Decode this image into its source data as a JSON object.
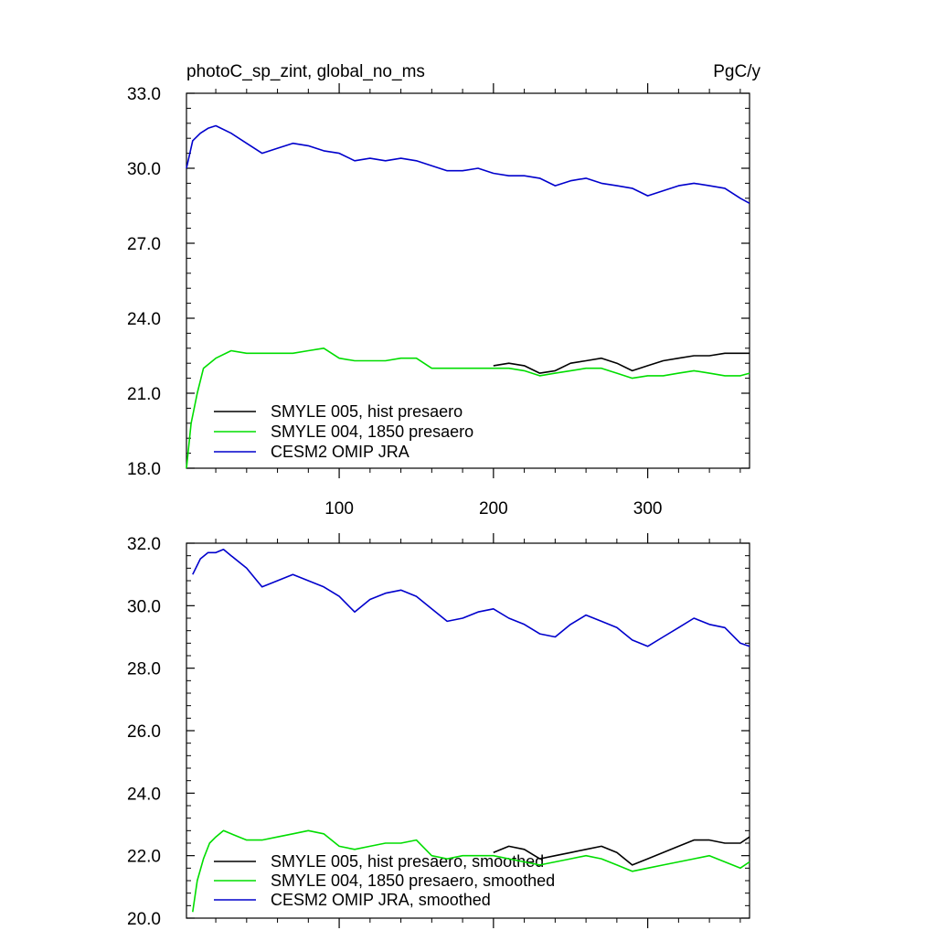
{
  "colors": {
    "hist": "#000000",
    "p1850": "#00dd00",
    "omip": "#0000cc"
  },
  "chart_data": [
    {
      "type": "line",
      "title_left": "photoC_sp_zint, global_no_ms",
      "title_right": "PgC/y",
      "xlim": [
        1,
        366
      ],
      "ylim": [
        18.0,
        33.0
      ],
      "x_ticks": [
        100,
        200,
        300
      ],
      "x_tick_labels": [
        "100",
        "200",
        "300"
      ],
      "y_ticks": [
        18.0,
        21.0,
        24.0,
        27.0,
        30.0,
        33.0
      ],
      "y_tick_labels": [
        "18.0",
        "21.0",
        "24.0",
        "27.0",
        "30.0",
        "33.0"
      ],
      "grid": false,
      "legend_position": "lower-left",
      "series": [
        {
          "name": "SMYLE 005, hist presaero",
          "color_key": "hist",
          "x": [
            200,
            210,
            220,
            230,
            240,
            250,
            260,
            270,
            280,
            290,
            300,
            310,
            320,
            330,
            340,
            350,
            360,
            366
          ],
          "y": [
            22.1,
            22.2,
            22.1,
            21.8,
            21.9,
            22.2,
            22.3,
            22.4,
            22.2,
            21.9,
            22.1,
            22.3,
            22.4,
            22.5,
            22.5,
            22.6,
            22.6,
            22.6
          ]
        },
        {
          "name": "SMYLE 004, 1850 presaero",
          "color_key": "p1850",
          "x": [
            1,
            4,
            8,
            12,
            20,
            30,
            40,
            50,
            60,
            70,
            80,
            90,
            100,
            110,
            120,
            130,
            140,
            150,
            160,
            170,
            180,
            190,
            200,
            210,
            220,
            230,
            240,
            250,
            260,
            270,
            280,
            290,
            300,
            310,
            320,
            330,
            340,
            350,
            360,
            366
          ],
          "y": [
            18.0,
            19.8,
            21.0,
            22.0,
            22.4,
            22.7,
            22.6,
            22.6,
            22.6,
            22.6,
            22.7,
            22.8,
            22.4,
            22.3,
            22.3,
            22.3,
            22.4,
            22.4,
            22.0,
            22.0,
            22.0,
            22.0,
            22.0,
            22.0,
            21.9,
            21.7,
            21.8,
            21.9,
            22.0,
            22.0,
            21.8,
            21.6,
            21.7,
            21.7,
            21.8,
            21.9,
            21.8,
            21.7,
            21.7,
            21.8
          ]
        },
        {
          "name": "CESM2 OMIP JRA",
          "color_key": "omip",
          "x": [
            1,
            5,
            10,
            15,
            20,
            30,
            40,
            50,
            60,
            70,
            80,
            90,
            100,
            110,
            120,
            130,
            140,
            150,
            160,
            170,
            180,
            190,
            200,
            210,
            220,
            230,
            240,
            250,
            260,
            270,
            280,
            290,
            300,
            310,
            320,
            330,
            340,
            350,
            360,
            366
          ],
          "y": [
            30.0,
            31.1,
            31.4,
            31.6,
            31.7,
            31.4,
            31.0,
            30.6,
            30.8,
            31.0,
            30.9,
            30.7,
            30.6,
            30.3,
            30.4,
            30.3,
            30.4,
            30.3,
            30.1,
            29.9,
            29.9,
            30.0,
            29.8,
            29.7,
            29.7,
            29.6,
            29.3,
            29.5,
            29.6,
            29.4,
            29.3,
            29.2,
            28.9,
            29.1,
            29.3,
            29.4,
            29.3,
            29.2,
            28.8,
            28.6
          ]
        }
      ]
    },
    {
      "type": "line",
      "xlim": [
        1,
        366
      ],
      "ylim": [
        20.0,
        32.0
      ],
      "x_ticks": [
        100,
        200,
        300
      ],
      "y_ticks": [
        20.0,
        22.0,
        24.0,
        26.0,
        28.0,
        30.0,
        32.0
      ],
      "y_tick_labels": [
        "20.0",
        "22.0",
        "24.0",
        "26.0",
        "28.0",
        "30.0",
        "32.0"
      ],
      "grid": false,
      "legend_position": "lower-left",
      "series": [
        {
          "name": "SMYLE 005, hist presaero, smoothed",
          "color_key": "hist",
          "x": [
            200,
            210,
            220,
            230,
            240,
            250,
            260,
            270,
            280,
            290,
            300,
            310,
            320,
            330,
            340,
            350,
            360,
            366
          ],
          "y": [
            22.1,
            22.3,
            22.2,
            21.9,
            22.0,
            22.1,
            22.2,
            22.3,
            22.1,
            21.7,
            21.9,
            22.1,
            22.3,
            22.5,
            22.5,
            22.4,
            22.4,
            22.6
          ]
        },
        {
          "name": "SMYLE 004, 1850 presaero, smoothed",
          "color_key": "p1850",
          "x": [
            5,
            8,
            12,
            16,
            20,
            25,
            30,
            40,
            50,
            60,
            70,
            80,
            90,
            100,
            110,
            120,
            130,
            140,
            150,
            160,
            170,
            180,
            190,
            200,
            210,
            220,
            230,
            240,
            250,
            260,
            270,
            280,
            290,
            300,
            310,
            320,
            330,
            340,
            350,
            360,
            366
          ],
          "y": [
            20.2,
            21.2,
            21.9,
            22.4,
            22.6,
            22.8,
            22.7,
            22.5,
            22.5,
            22.6,
            22.7,
            22.8,
            22.7,
            22.3,
            22.2,
            22.3,
            22.4,
            22.4,
            22.5,
            22.0,
            21.9,
            22.0,
            22.0,
            22.0,
            21.9,
            21.8,
            21.7,
            21.8,
            21.9,
            22.0,
            21.9,
            21.7,
            21.5,
            21.6,
            21.7,
            21.8,
            21.9,
            22.0,
            21.8,
            21.6,
            21.8
          ]
        },
        {
          "name": "CESM2 OMIP JRA, smoothed",
          "color_key": "omip",
          "x": [
            5,
            10,
            15,
            20,
            25,
            30,
            40,
            50,
            60,
            70,
            80,
            90,
            100,
            110,
            120,
            130,
            140,
            150,
            160,
            170,
            180,
            190,
            200,
            210,
            220,
            230,
            240,
            250,
            260,
            270,
            280,
            290,
            300,
            310,
            320,
            330,
            340,
            350,
            360,
            366
          ],
          "y": [
            31.0,
            31.5,
            31.7,
            31.7,
            31.8,
            31.6,
            31.2,
            30.6,
            30.8,
            31.0,
            30.8,
            30.6,
            30.3,
            29.8,
            30.2,
            30.4,
            30.5,
            30.3,
            29.9,
            29.5,
            29.6,
            29.8,
            29.9,
            29.6,
            29.4,
            29.1,
            29.0,
            29.4,
            29.7,
            29.5,
            29.3,
            28.9,
            28.7,
            29.0,
            29.3,
            29.6,
            29.4,
            29.3,
            28.8,
            28.7
          ]
        }
      ]
    }
  ]
}
